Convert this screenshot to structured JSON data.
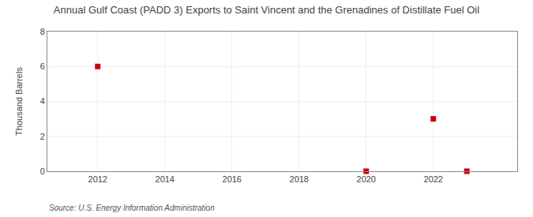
{
  "chart_data": {
    "type": "scatter",
    "title": "Annual Gulf Coast (PADD 3) Exports to Saint Vincent and the Grenadines of Distillate Fuel Oil",
    "ylabel": "Thousand Barrels",
    "source": "Source: U.S. Energy Information Administration",
    "x": [
      2012,
      2020,
      2022,
      2023
    ],
    "values": [
      6,
      0,
      3,
      0
    ],
    "color": "#cc0000",
    "marker": "square",
    "xlim": [
      2010.5,
      2024.5
    ],
    "ylim": [
      0,
      8
    ],
    "xticks": [
      2012,
      2014,
      2016,
      2018,
      2020,
      2022
    ],
    "yticks": [
      0,
      2,
      4,
      6,
      8
    ],
    "grid": true
  }
}
